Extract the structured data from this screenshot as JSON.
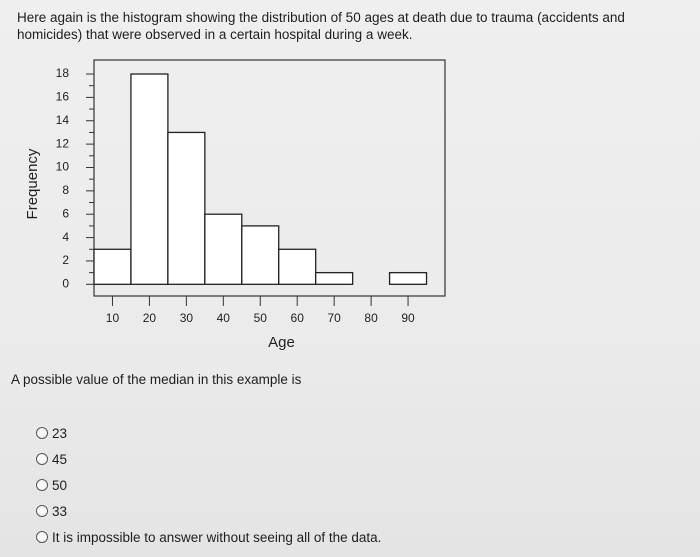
{
  "question": {
    "text": "Here again is the histogram showing the distribution of 50 ages at death due to trauma (accidents and homicides) that were observed in a certain hospital during a week."
  },
  "chart_data": {
    "type": "bar",
    "xlabel": "Age",
    "ylabel": "Frequency",
    "bins": [
      [
        5,
        15
      ],
      [
        15,
        25
      ],
      [
        25,
        35
      ],
      [
        35,
        45
      ],
      [
        45,
        55
      ],
      [
        55,
        65
      ],
      [
        65,
        75
      ],
      [
        75,
        85
      ],
      [
        85,
        95
      ]
    ],
    "values": [
      3,
      18,
      13,
      6,
      5,
      3,
      1,
      0,
      1
    ],
    "x_ticks": [
      10,
      20,
      30,
      40,
      50,
      60,
      70,
      80,
      90
    ],
    "y_ticks": [
      0,
      2,
      4,
      6,
      8,
      10,
      12,
      14,
      16,
      18
    ],
    "xlim": [
      5,
      100
    ],
    "ylim": [
      -1,
      19.2
    ],
    "grid": false
  },
  "prompt": "A possible value of the median in this example is",
  "options": [
    {
      "label": "23"
    },
    {
      "label": "45"
    },
    {
      "label": "50"
    },
    {
      "label": "33"
    },
    {
      "label": "It is impossible to answer without seeing all of the data."
    }
  ]
}
